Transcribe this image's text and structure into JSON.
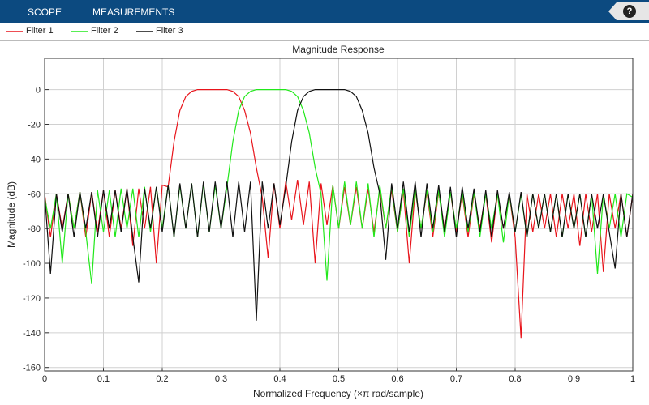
{
  "ui": {
    "tabs": [
      "SCOPE",
      "MEASUREMENTS"
    ],
    "help": "?"
  },
  "chart_data": {
    "type": "line",
    "title": "Magnitude Response",
    "x_label": "Normalized Frequency (×π rad/sample)",
    "y_label": "Magnitude (dB)",
    "xlim": [
      0,
      1
    ],
    "ylim": [
      -162,
      18
    ],
    "xticks": [
      0,
      0.1,
      0.2,
      0.3,
      0.4,
      0.5,
      0.6,
      0.7,
      0.8,
      0.9,
      1
    ],
    "yticks": [
      -160,
      -140,
      -120,
      -100,
      -80,
      -60,
      -40,
      -20,
      0
    ],
    "grid": true,
    "x": [
      0,
      0.01,
      0.02,
      0.03,
      0.04,
      0.05,
      0.06,
      0.07,
      0.08,
      0.09,
      0.1,
      0.11,
      0.12,
      0.13,
      0.14,
      0.15,
      0.16,
      0.17,
      0.18,
      0.19,
      0.2,
      0.21,
      0.22,
      0.23,
      0.24,
      0.25,
      0.26,
      0.27,
      0.28,
      0.29,
      0.3,
      0.31,
      0.32,
      0.33,
      0.34,
      0.35,
      0.36,
      0.37,
      0.38,
      0.39,
      0.4,
      0.41,
      0.42,
      0.43,
      0.44,
      0.45,
      0.46,
      0.47,
      0.48,
      0.49,
      0.5,
      0.51,
      0.52,
      0.53,
      0.54,
      0.55,
      0.56,
      0.57,
      0.58,
      0.59,
      0.6,
      0.61,
      0.62,
      0.63,
      0.64,
      0.65,
      0.66,
      0.67,
      0.68,
      0.69,
      0.7,
      0.71,
      0.72,
      0.73,
      0.74,
      0.75,
      0.76,
      0.77,
      0.78,
      0.79,
      0.8,
      0.81,
      0.82,
      0.83,
      0.84,
      0.85,
      0.86,
      0.87,
      0.88,
      0.89,
      0.9,
      0.91,
      0.92,
      0.93,
      0.94,
      0.95,
      0.96,
      0.97,
      0.98,
      0.99,
      1
    ],
    "series": [
      {
        "name": "Filter 1",
        "color": "#e8141b",
        "values": [
          -60,
          -85,
          -60,
          -80,
          -60,
          -80,
          -59,
          -85,
          -59,
          -82,
          -58,
          -85,
          -58,
          -80,
          -57,
          -90,
          -57,
          -80,
          -56,
          -100,
          -55,
          -56,
          -30,
          -12,
          -4,
          -1,
          0,
          0,
          0,
          0,
          0,
          0,
          -1,
          -4,
          -12,
          -25,
          -45,
          -62,
          -97,
          -54,
          -80,
          -53,
          -75,
          -52,
          -78,
          -53,
          -100,
          -54,
          -78,
          -55,
          -80,
          -56,
          -78,
          -56,
          -80,
          -57,
          -82,
          -57,
          -80,
          -58,
          -82,
          -58,
          -100,
          -58,
          -80,
          -59,
          -85,
          -59,
          -80,
          -59,
          -82,
          -60,
          -85,
          -60,
          -80,
          -60,
          -88,
          -60,
          -80,
          -60,
          -85,
          -143,
          -60,
          -82,
          -60,
          -80,
          -60,
          -85,
          -60,
          -80,
          -60,
          -90,
          -60,
          -82,
          -60,
          -105,
          -60,
          -80,
          -60,
          -85,
          -60
        ]
      },
      {
        "name": "Filter 2",
        "color": "#22e81b",
        "values": [
          -62,
          -80,
          -60,
          -100,
          -60,
          -80,
          -59,
          -82,
          -112,
          -58,
          -82,
          -58,
          -85,
          -57,
          -80,
          -57,
          -85,
          -56,
          -82,
          -56,
          -80,
          -55,
          -85,
          -55,
          -80,
          -54,
          -85,
          -54,
          -82,
          -55,
          -80,
          -56,
          -30,
          -12,
          -4,
          -1,
          0,
          0,
          0,
          0,
          0,
          0,
          -1,
          -4,
          -12,
          -25,
          -45,
          -60,
          -110,
          -55,
          -80,
          -53,
          -78,
          -53,
          -80,
          -54,
          -85,
          -55,
          -80,
          -56,
          -82,
          -57,
          -85,
          -57,
          -80,
          -58,
          -82,
          -58,
          -85,
          -59,
          -80,
          -59,
          -82,
          -59,
          -85,
          -60,
          -80,
          -60,
          -88,
          -60,
          -82,
          -60,
          -85,
          -60,
          -80,
          -60,
          -82,
          -60,
          -85,
          -60,
          -80,
          -60,
          -85,
          -60,
          -106,
          -60,
          -80,
          -60,
          -85,
          -60,
          -62
        ]
      },
      {
        "name": "Filter 3",
        "color": "#111111",
        "values": [
          -60,
          -106,
          -60,
          -82,
          -60,
          -85,
          -59,
          -80,
          -59,
          -85,
          -58,
          -80,
          -58,
          -82,
          -57,
          -85,
          -111,
          -57,
          -80,
          -56,
          -82,
          -55,
          -85,
          -54,
          -80,
          -54,
          -85,
          -53,
          -82,
          -53,
          -80,
          -53,
          -85,
          -53,
          -82,
          -53,
          -133,
          -53,
          -80,
          -54,
          -78,
          -56,
          -30,
          -12,
          -4,
          -1,
          0,
          0,
          0,
          0,
          0,
          0,
          -1,
          -4,
          -12,
          -25,
          -45,
          -60,
          -98,
          -54,
          -80,
          -53,
          -82,
          -53,
          -85,
          -54,
          -80,
          -55,
          -82,
          -56,
          -85,
          -56,
          -80,
          -57,
          -82,
          -58,
          -85,
          -58,
          -80,
          -59,
          -82,
          -59,
          -85,
          -60,
          -80,
          -60,
          -82,
          -60,
          -85,
          -60,
          -80,
          -60,
          -85,
          -60,
          -80,
          -60,
          -82,
          -103,
          -60,
          -85,
          -60
        ]
      }
    ]
  }
}
